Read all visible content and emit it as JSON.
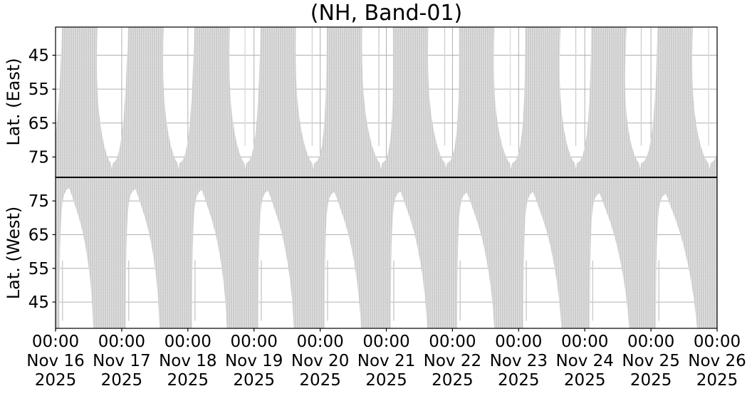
{
  "chart_data": {
    "type": "heatmap",
    "title": "(NH, Band-01)",
    "description": "Two stacked coverage panels (shared time axis): gray mesh = coverage vs latitude, white = no coverage. Top panel Lat. (East) has inverted latitude axis; bottom panel Lat. (West) mirrors it. Daily repeating pattern over 10 days.",
    "x_axis": {
      "num_days": 10,
      "tick_labels": [
        {
          "time": "00:00",
          "date": "Nov 16",
          "year": "2025"
        },
        {
          "time": "00:00",
          "date": "Nov 17",
          "year": "2025"
        },
        {
          "time": "00:00",
          "date": "Nov 18",
          "year": "2025"
        },
        {
          "time": "00:00",
          "date": "Nov 19",
          "year": "2025"
        },
        {
          "time": "00:00",
          "date": "Nov 20",
          "year": "2025"
        },
        {
          "time": "00:00",
          "date": "Nov 21",
          "year": "2025"
        },
        {
          "time": "00:00",
          "date": "Nov 22",
          "year": "2025"
        },
        {
          "time": "00:00",
          "date": "Nov 23",
          "year": "2025"
        },
        {
          "time": "00:00",
          "date": "Nov 24",
          "year": "2025"
        },
        {
          "time": "00:00",
          "date": "Nov 25",
          "year": "2025"
        },
        {
          "time": "00:00",
          "date": "Nov 26",
          "year": "2025"
        }
      ]
    },
    "panels": [
      {
        "id": "east",
        "ylabel": "Lat. (East)",
        "yticks": [
          45,
          55,
          65,
          75
        ],
        "ylim_top": 36.7,
        "ylim_bottom": 81.0,
        "inverted": true,
        "white_gap": {
          "left_pts": [
            [
              0.634,
              0
            ],
            [
              0.627,
              0.1
            ],
            [
              0.623,
              0.22
            ],
            [
              0.625,
              0.34
            ],
            [
              0.636,
              0.46
            ],
            [
              0.658,
              0.58
            ],
            [
              0.692,
              0.69
            ],
            [
              0.734,
              0.785
            ],
            [
              0.782,
              0.857
            ],
            [
              0.818,
              0.892
            ],
            [
              0.832,
              0.9
            ]
          ],
          "notch_pts": [
            [
              0.84,
              0.905
            ],
            [
              0.855,
              0.945
            ],
            [
              0.868,
              0.905
            ]
          ],
          "right_pts": [
            [
              0.888,
              0.9
            ],
            [
              0.914,
              0.89
            ],
            [
              0.946,
              0.86
            ],
            [
              0.98,
              0.8
            ],
            [
              1.01,
              0.715
            ],
            [
              1.035,
              0.605
            ],
            [
              1.056,
              0.475
            ],
            [
              1.072,
              0.335
            ],
            [
              1.085,
              0.19
            ],
            [
              1.094,
              0.075
            ],
            [
              1.097,
              0
            ]
          ],
          "day_shift": [
            -0.006,
            0.005,
            0.015,
            0.045,
            0.07,
            0.054,
            0.034,
            0.012,
            -0.019,
            0.034
          ],
          "day_widen": [
            0.96,
            0.98,
            1.0,
            1.05,
            1.08,
            1.1,
            1.12,
            1.1,
            1.14,
            1.12
          ],
          "hairline_days": [
            2,
            3,
            4,
            5,
            6,
            7,
            8,
            9
          ],
          "hairline_offset": 0.852,
          "hairline_depth": 0.79
        }
      },
      {
        "id": "west",
        "ylabel": "Lat. (West)",
        "yticks": [
          75,
          65,
          55,
          45
        ],
        "ylim_top": 82.0,
        "ylim_bottom": 37.2,
        "inverted": false,
        "white_tongue": {
          "left_pts": [
            [
              0.196,
              0.071
            ],
            [
              0.16,
              0.085
            ],
            [
              0.128,
              0.112
            ],
            [
              0.103,
              0.16
            ],
            [
              0.086,
              0.235
            ],
            [
              0.074,
              0.335
            ],
            [
              0.066,
              0.455
            ],
            [
              0.06,
              0.595
            ],
            [
              0.057,
              0.755
            ],
            [
              0.055,
              0.9
            ],
            [
              0.055,
              1.0
            ]
          ],
          "right_pts": [
            [
              0.565,
              1.0
            ],
            [
              0.556,
              0.895
            ],
            [
              0.54,
              0.78
            ],
            [
              0.516,
              0.665
            ],
            [
              0.484,
              0.555
            ],
            [
              0.444,
              0.445
            ],
            [
              0.398,
              0.348
            ],
            [
              0.346,
              0.262
            ],
            [
              0.292,
              0.188
            ],
            [
              0.243,
              0.122
            ],
            [
              0.215,
              0.085
            ],
            [
              0.196,
              0.071
            ]
          ],
          "vertex_y": [
            0.071,
            0.078,
            0.085,
            0.09,
            0.099,
            0.095,
            0.104,
            0.1,
            0.108,
            0.112
          ],
          "day_widen": [
            1.0,
            1.0,
            1.03,
            1.05,
            1.08,
            1.08,
            1.1,
            1.13,
            1.17,
            1.22
          ],
          "day_shift": [
            0.004,
            0.006,
            0.008,
            0.01,
            0.012,
            0.012,
            0.016,
            0.016,
            0.02,
            0.02
          ],
          "sliver_offset": 0.092,
          "sliver_span": [
            0.55,
            0.95
          ]
        }
      }
    ],
    "colors": {
      "coverage_base": "#c6c6c6",
      "coverage_line_v": "#e7e7e7",
      "coverage_line_h": "#dfdfdf",
      "grid": "#b0b0b0",
      "spine": "#000000",
      "text": "#000000",
      "background": "#ffffff"
    },
    "layout": {
      "plot_left": 78,
      "plot_right": 1007,
      "plot_top": 38,
      "panel_split": 249,
      "plot_bottom": 461,
      "grid_on": true,
      "legend": "none"
    }
  }
}
